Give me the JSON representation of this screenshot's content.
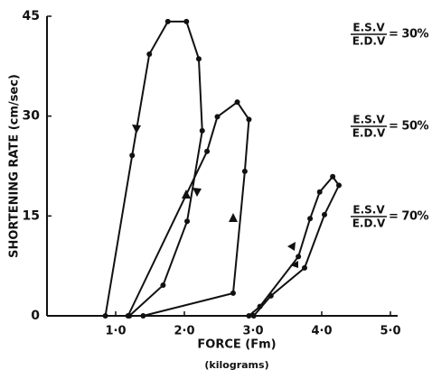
{
  "chart_data": {
    "type": "line",
    "xlabel": "FORCE (Fm)",
    "xlabel_sub": "(kilograms)",
    "ylabel": "SHORTENING RATE (cm/sec)",
    "xlim": [
      0,
      5
    ],
    "ylim": [
      0,
      45
    ],
    "xticks": [
      {
        "value": 1,
        "label": "1·0"
      },
      {
        "value": 2,
        "label": "2·0"
      },
      {
        "value": 3,
        "label": "3·0"
      },
      {
        "value": 4,
        "label": "4·0"
      },
      {
        "value": 5,
        "label": "5·0"
      }
    ],
    "yticks": [
      0,
      15,
      30,
      45
    ],
    "color": "#111111",
    "series": [
      {
        "x": [
          0.85,
          1.24,
          1.49,
          1.76,
          2.03,
          2.21,
          2.26,
          2.04,
          1.69,
          1.2
        ],
        "values": [
          0,
          24.1,
          39.3,
          44.2,
          44.2,
          38.6,
          27.8,
          14.2,
          4.6,
          0
        ]
      },
      {
        "x": [
          1.4,
          2.71,
          2.88,
          2.94,
          2.77,
          2.48,
          2.33,
          1.18
        ],
        "values": [
          0,
          3.4,
          21.7,
          29.5,
          32.1,
          29.9,
          24.7,
          0
        ]
      },
      {
        "x": [
          3.01,
          3.26,
          3.75,
          4.04,
          4.25,
          4.16,
          3.97,
          3.83,
          3.66,
          3.1,
          2.94
        ],
        "values": [
          0,
          3.0,
          7.2,
          15.2,
          19.6,
          20.9,
          18.6,
          14.6,
          8.9,
          1.4,
          0
        ]
      }
    ],
    "annotations": [
      {
        "numerator": "E.S.V",
        "denominator": "E.D.V",
        "text": "= 30%"
      },
      {
        "numerator": "E.S.V",
        "denominator": "E.D.V",
        "text": "= 50%"
      },
      {
        "numerator": "E.S.V",
        "denominator": "E.D.V",
        "text": "= 70%"
      }
    ]
  }
}
